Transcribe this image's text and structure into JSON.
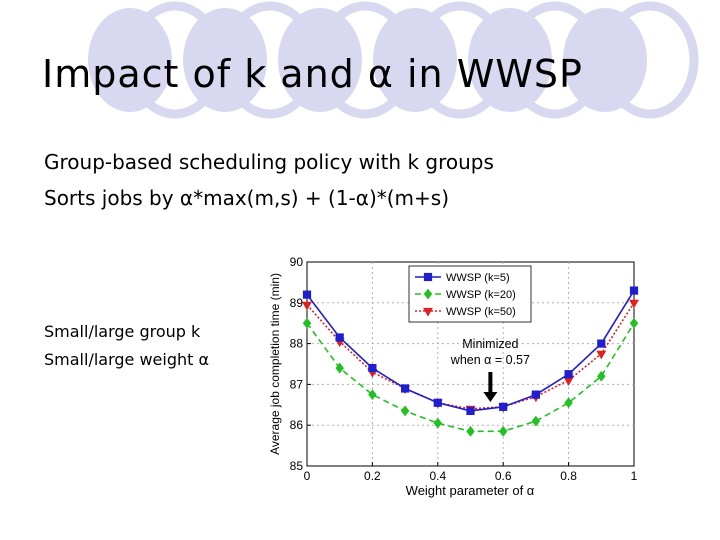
{
  "slide": {
    "title": "Impact of k and α in WWSP",
    "bullets": [
      "Group-based scheduling policy with k groups",
      "Sorts jobs by α*max(m,s) + (1-α)*(m+s)"
    ],
    "side_notes": [
      "Small/large group k",
      "Small/large weight α"
    ]
  },
  "chart_data": {
    "type": "line",
    "xlabel": "Weight parameter of α",
    "ylabel": "Average job completion time (min)",
    "xlim": [
      0,
      1
    ],
    "ylim": [
      85,
      90
    ],
    "x_ticks": [
      "0",
      "0.2",
      "0.4",
      "0.6",
      "0.8",
      "1"
    ],
    "y_ticks": [
      "85",
      "86",
      "87",
      "88",
      "89",
      "90"
    ],
    "grid": "dotted",
    "legend": "top-right",
    "x": [
      0,
      0.1,
      0.2,
      0.3,
      0.4,
      0.5,
      0.6,
      0.7,
      0.8,
      0.9,
      1.0
    ],
    "series": [
      {
        "name": "WWSP (k=5)",
        "color": "#1f1fd0",
        "marker": "square",
        "linestyle": "solid",
        "values": [
          89.2,
          88.15,
          87.4,
          86.9,
          86.55,
          86.35,
          86.45,
          86.75,
          87.25,
          88.0,
          89.3
        ]
      },
      {
        "name": "WWSP (k=20)",
        "color": "#22c022",
        "marker": "diamond",
        "linestyle": "dashed",
        "values": [
          88.5,
          87.4,
          86.75,
          86.35,
          86.05,
          85.85,
          85.85,
          86.1,
          86.55,
          87.2,
          88.5
        ]
      },
      {
        "name": "WWSP (k=50)",
        "color": "#e02020",
        "marker": "triangle-down",
        "linestyle": "dotted",
        "values": [
          88.95,
          88.05,
          87.3,
          86.9,
          86.55,
          86.4,
          86.45,
          86.7,
          87.1,
          87.75,
          89.0
        ]
      }
    ],
    "annotation": {
      "lines": [
        "Minimized",
        "when α = 0.57"
      ],
      "arrow_target_x": 0.57
    }
  }
}
